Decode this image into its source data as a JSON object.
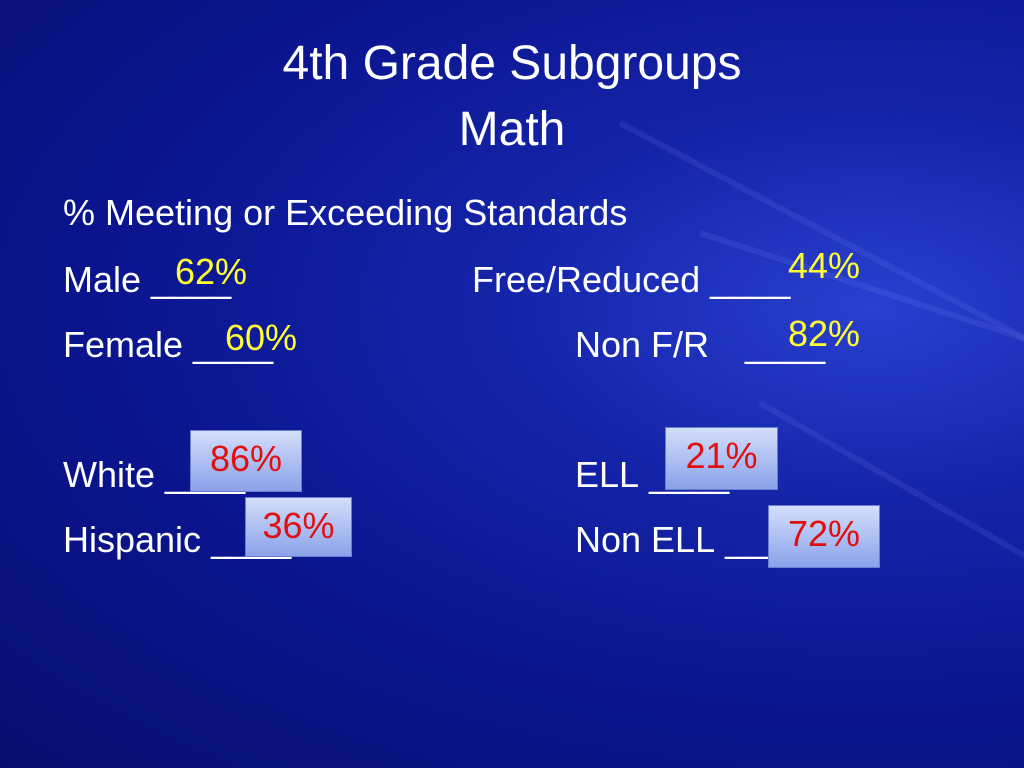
{
  "title": [
    "4th Grade Subgroups",
    "Math"
  ],
  "heading": "% Meeting or Exceeding Standards",
  "items": [
    {
      "label": "Male",
      "blank": "____",
      "value": "62%"
    },
    {
      "label": "Female",
      "blank": "____",
      "value": "60%"
    },
    {
      "label": "White",
      "blank": "____",
      "value": "86%"
    },
    {
      "label": "Hispanic",
      "blank": "____",
      "value": "36%"
    },
    {
      "label": "Free/Reduced",
      "blank": "____",
      "value": "44%"
    },
    {
      "label": "Non F/R",
      "blank": "____",
      "value": "82%"
    },
    {
      "label": "ELL",
      "blank": "____",
      "value": "21%"
    },
    {
      "label": "Non ELL",
      "blank": "____",
      "value": "72%"
    }
  ]
}
